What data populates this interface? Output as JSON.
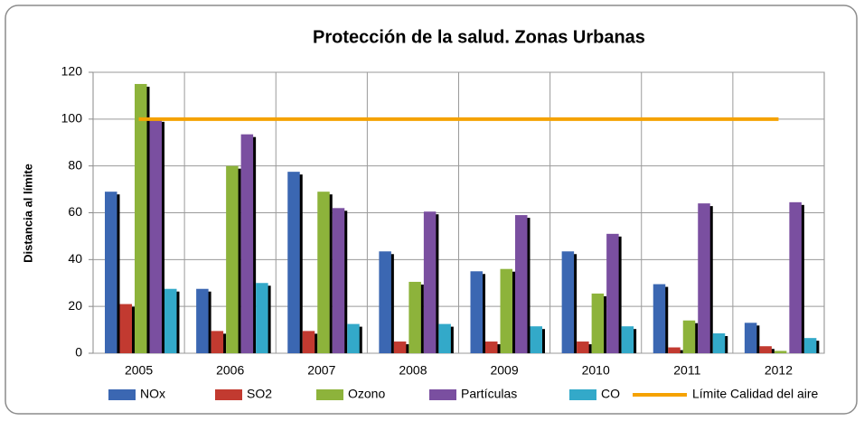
{
  "chart_data": {
    "type": "bar",
    "title": "Protección de la salud. Zonas Urbanas",
    "y_label": "Distancia al límite",
    "categories": [
      "2005",
      "2006",
      "2007",
      "2008",
      "2009",
      "2010",
      "2011",
      "2012"
    ],
    "series": [
      {
        "name": "NOx",
        "color": "#3b67b2",
        "values": [
          69,
          27.5,
          77.5,
          43.5,
          35,
          43.5,
          29.5,
          13
        ]
      },
      {
        "name": "SO2",
        "color": "#c23a30",
        "values": [
          21,
          9.5,
          9.5,
          5,
          5,
          5,
          2.5,
          3
        ]
      },
      {
        "name": "Ozono",
        "color": "#8db33b",
        "values": [
          115,
          80,
          69,
          30.5,
          36,
          25.5,
          14,
          1
        ]
      },
      {
        "name": "Partículas",
        "color": "#7a4fa0",
        "values": [
          100,
          93.5,
          62,
          60.5,
          59,
          51,
          64,
          64.5
        ]
      },
      {
        "name": "CO",
        "color": "#33a9c9",
        "values": [
          27.5,
          30,
          12.5,
          12.5,
          11.5,
          11.5,
          8.5,
          6.5
        ]
      },
      {
        "name": "Límite Calidad del aire",
        "type": "line",
        "color": "#f5a200",
        "values": [
          100,
          100,
          100,
          100,
          100,
          100,
          100,
          100
        ]
      }
    ],
    "ylim": [
      0,
      120
    ],
    "yticks": [
      0,
      20,
      40,
      60,
      80,
      100,
      120
    ],
    "grid": true,
    "legend": "bottom"
  }
}
